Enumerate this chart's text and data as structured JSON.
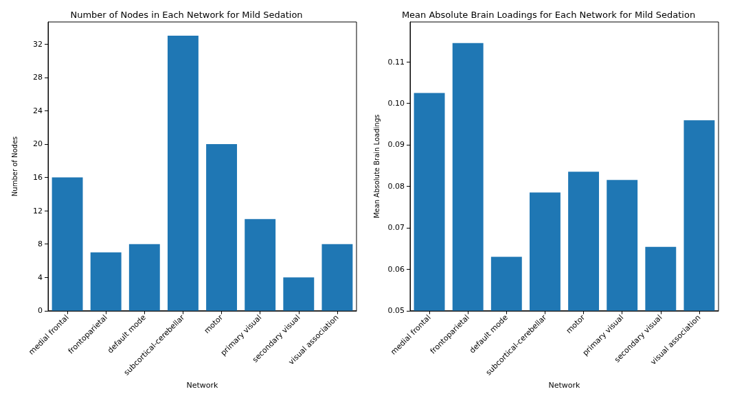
{
  "chart_data": [
    {
      "type": "bar",
      "title": "Number of Nodes in Each Network for Mild Sedation",
      "xlabel": "Network",
      "ylabel": "Number of Nodes",
      "categories": [
        "medial frontal",
        "frontoparietal",
        "default mode",
        "subcortical-cerebellar",
        "motor",
        "primary visual",
        "secondary visual",
        "visual association"
      ],
      "values": [
        16,
        7,
        8,
        33,
        20,
        11,
        4,
        8
      ],
      "color": "#1f77b4",
      "ylim": [
        0,
        34.65
      ],
      "yticks": [
        0,
        4,
        8,
        12,
        16,
        20,
        24,
        28,
        32
      ],
      "grid": false
    },
    {
      "type": "bar",
      "title": "Mean Absolute Brain Loadings for Each Network for Mild Sedation",
      "xlabel": "Network",
      "ylabel": "Mean Absolute Brain Loadings",
      "categories": [
        "medial frontal",
        "frontoparietal",
        "default mode",
        "subcortical-cerebellar",
        "motor",
        "primary visual",
        "secondary visual",
        "visual association"
      ],
      "values": [
        0.1025,
        0.1145,
        0.063,
        0.0785,
        0.0835,
        0.0815,
        0.0654,
        0.0959
      ],
      "color": "#1f77b4",
      "ylim": [
        0.05,
        0.1196
      ],
      "yticks": [
        0.05,
        0.06,
        0.07,
        0.08,
        0.09,
        {
          "value": 0.1,
          "label": "0.10"
        },
        0.11
      ],
      "grid": false
    }
  ]
}
